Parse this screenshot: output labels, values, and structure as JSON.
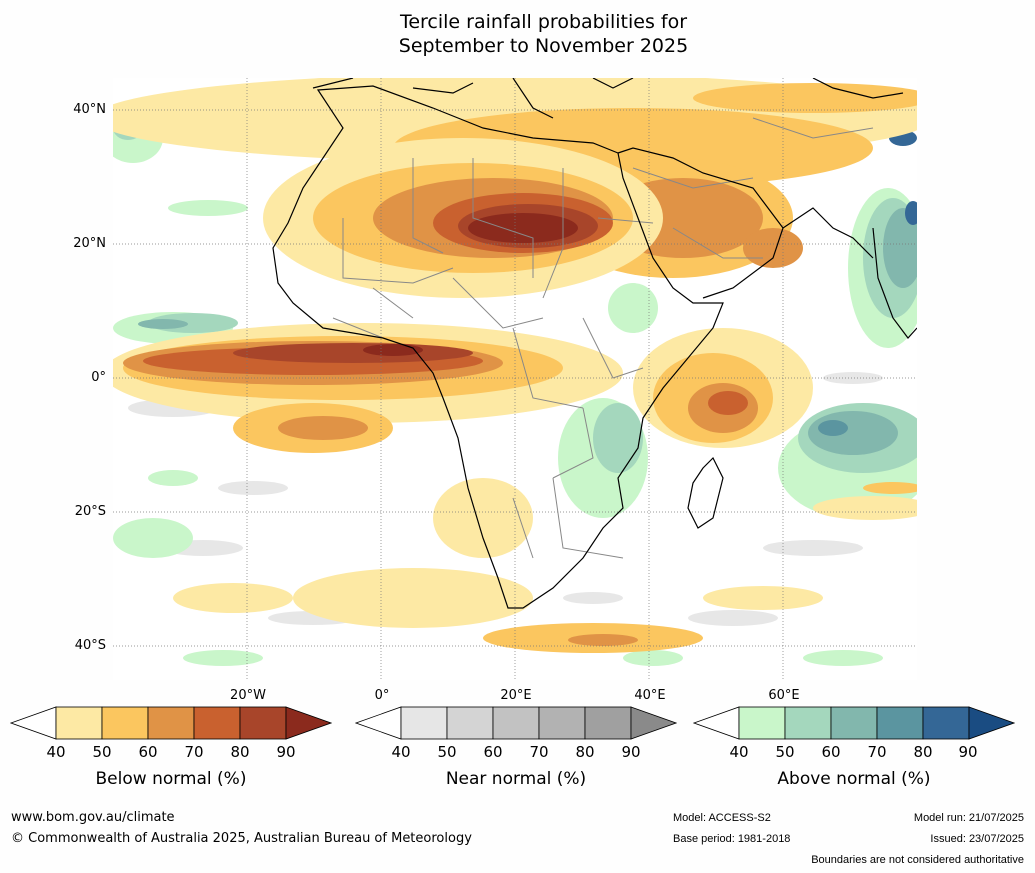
{
  "title": {
    "line1": "Tercile rainfall probabilities for",
    "line2": "September to November 2025"
  },
  "axes": {
    "lat_labels": [
      "40°N",
      "20°N",
      "0°",
      "20°S",
      "40°S"
    ],
    "lon_labels": [
      "20°W",
      "0°",
      "20°E",
      "40°E",
      "60°E"
    ]
  },
  "map": {
    "region": "Africa, Middle East and western Indian Ocean",
    "gridlines": true,
    "coastline_color": "#000000",
    "border_color": "#888888"
  },
  "colorbars": [
    {
      "name": "below",
      "title": "Below normal (%)",
      "ticks": [
        "40",
        "50",
        "60",
        "70",
        "80",
        "90"
      ],
      "colors": [
        "#ffffff",
        "#fde9a4",
        "#fbc65f",
        "#e09346",
        "#c9612f",
        "#a8452a",
        "#8b2a1d"
      ]
    },
    {
      "name": "near",
      "title": "Near normal (%)",
      "ticks": [
        "40",
        "50",
        "60",
        "70",
        "80",
        "90"
      ],
      "colors": [
        "#ffffff",
        "#e6e6e6",
        "#d4d4d4",
        "#c2c2c2",
        "#b2b2b2",
        "#a0a0a0",
        "#8a8a8a"
      ]
    },
    {
      "name": "above",
      "title": "Above normal (%)",
      "ticks": [
        "40",
        "50",
        "60",
        "70",
        "80",
        "90"
      ],
      "colors": [
        "#ffffff",
        "#c9f6ca",
        "#a4d7bd",
        "#82b7ad",
        "#5b95a0",
        "#346796",
        "#1a4c82"
      ]
    }
  ],
  "footer": {
    "website": "www.bom.gov.au/climate",
    "copyright": "© Commonwealth of Australia 2025, Australian Bureau of Meteorology",
    "model": "Model: ACCESS-S2",
    "base_period": "Base period: 1981-2018",
    "model_run": "Model run: 21/07/2025",
    "issued": "Issued: 23/07/2025",
    "disclaimer": "Boundaries are not considered authoritative"
  }
}
